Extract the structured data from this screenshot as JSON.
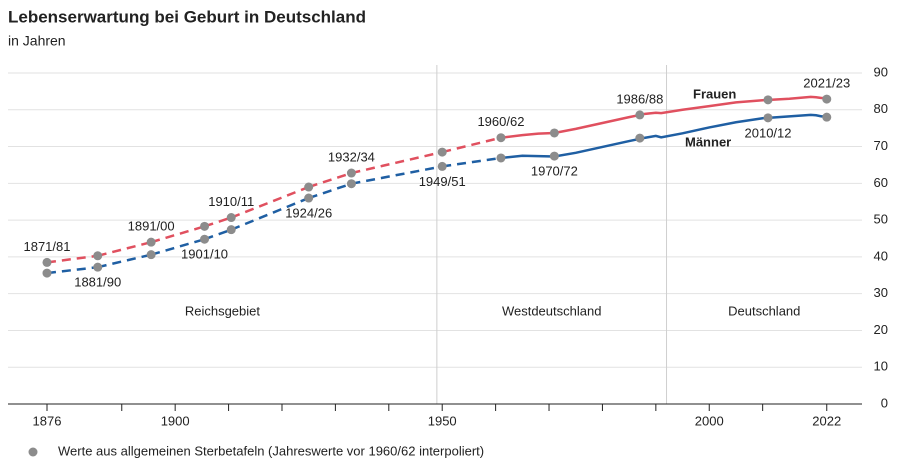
{
  "chart_data": {
    "type": "line",
    "title": "Lebenserwartung bei Geburt in Deutschland",
    "subtitle": "in Jahren",
    "xlim": [
      1868.7,
      2028.6
    ],
    "ylim": [
      0,
      90
    ],
    "yticks": [
      0,
      10,
      20,
      30,
      40,
      50,
      60,
      70,
      80,
      90
    ],
    "xticks": [
      1876,
      1900,
      1950,
      2000,
      2022
    ],
    "xminorticks": [
      1890,
      1910,
      1920,
      1930,
      1940,
      1960,
      1970,
      1980,
      1990,
      2010
    ],
    "grid": true,
    "dividers": [
      1949,
      1992
    ],
    "regions": [
      "Reichsgebiet",
      "Westdeutschland",
      "Deutschland"
    ],
    "dot_color": "#8c8c8c",
    "legend": "Werte aus allgemeinen Sterbetafeln (Jahreswerte vor 1960/62 interpoliert)",
    "periods": {
      "labels": [
        "1871/81",
        "1881/90",
        "1891/00",
        "1901/10",
        "1910/11",
        "1924/26",
        "1932/34",
        "1949/51",
        "1960/62",
        "1970/72",
        "1986/88",
        "2010/12",
        "2021/23"
      ],
      "x": [
        1876,
        1885.5,
        1895.5,
        1905.5,
        1910.5,
        1925,
        1933,
        1950,
        1961,
        1971,
        1987,
        2011,
        2022
      ]
    },
    "series": [
      {
        "name": "Frauen",
        "color": "#e0505f",
        "period_values": [
          38.5,
          40.3,
          44.0,
          48.3,
          50.7,
          59.0,
          62.8,
          68.5,
          72.4,
          73.7,
          78.6,
          82.7,
          82.9
        ],
        "x": [
          1961,
          1965,
          1968,
          1971,
          1975,
          1980,
          1985,
          1988,
          1990,
          1991,
          1995,
          2000,
          2005,
          2010,
          2015,
          2019,
          2020,
          2021,
          2022
        ],
        "values": [
          72.4,
          73.1,
          73.5,
          73.7,
          74.8,
          76.4,
          78.0,
          78.9,
          79.2,
          79.1,
          80.0,
          81.0,
          82.0,
          82.6,
          83.0,
          83.5,
          83.4,
          83.2,
          83.2
        ]
      },
      {
        "name": "Männer",
        "color": "#1f5fa3",
        "period_values": [
          35.6,
          37.2,
          40.6,
          44.8,
          47.4,
          56.0,
          59.9,
          64.6,
          66.9,
          67.4,
          72.3,
          77.8,
          78.0
        ],
        "x": [
          1961,
          1965,
          1968,
          1971,
          1975,
          1980,
          1985,
          1988,
          1990,
          1991,
          1995,
          2000,
          2005,
          2010,
          2015,
          2019,
          2020,
          2021,
          2022
        ],
        "values": [
          66.9,
          67.5,
          67.4,
          67.3,
          68.3,
          69.9,
          71.5,
          72.4,
          72.9,
          72.5,
          73.6,
          75.2,
          76.6,
          77.7,
          78.2,
          78.6,
          78.5,
          78.2,
          78.2
        ]
      }
    ]
  }
}
